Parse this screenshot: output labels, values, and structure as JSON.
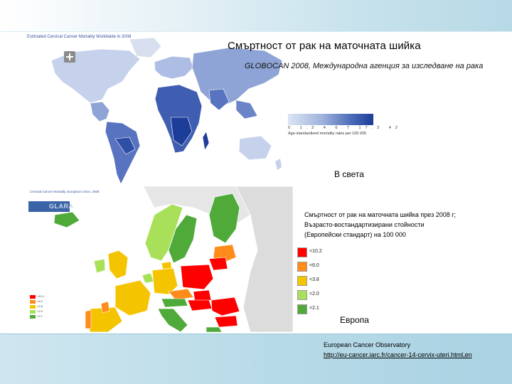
{
  "slide": {
    "title": "Смъртност от рак на маточната шийка",
    "source": "GLOBOCAN 2008, Международна агенция за изследване на рака"
  },
  "world_map": {
    "caption": "Estimated Cervical Cancer Mortality Worldwide in 2008",
    "legend_ticks": "0  1.3  4  6.7  17.3  42",
    "legend_note": "Age-standardised mortality rates per 100 000",
    "label": "В света",
    "colors": {
      "light": "#dde5f4",
      "mid": "#8ea4d6",
      "dark": "#1c3d98",
      "ocean": "#ffffff",
      "no_data": "#d9d9d9"
    }
  },
  "europe_map": {
    "caption": "Cervical Cancer Mortality, European Union, 2008",
    "logo": "GLARA",
    "description": [
      "Смъртност от рак на маточната шийка през 2008 г;",
      "Възрасто-востандартизирани стойности",
      "(Европейски стандарт)  на 100 000"
    ],
    "legend": [
      {
        "label": "<10.2",
        "color": "#ff0000"
      },
      {
        "label": "<6.0",
        "color": "#ff8c1a"
      },
      {
        "label": "<3.8",
        "color": "#f5c400"
      },
      {
        "label": "<2.0",
        "color": "#a9e05a"
      },
      {
        "label": "<2.1",
        "color": "#4faa3a"
      }
    ],
    "mini_legend": [
      "<10.2",
      "<6.0",
      "<3.8",
      "<2.0",
      "<2.1"
    ],
    "label": "Европа"
  },
  "footer": {
    "observatory": "European Cancer Observatory",
    "link": "http://eu-cancer.iarc.fr/cancer-14-cervix-uteri.html,en"
  }
}
